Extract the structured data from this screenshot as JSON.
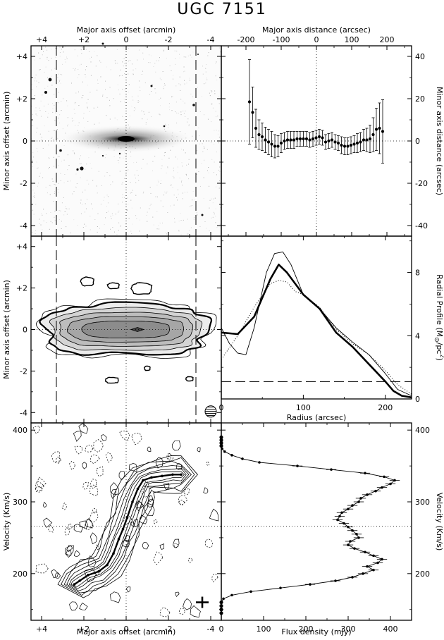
{
  "title": "UGC 7151",
  "chart_data": [
    {
      "panel": "optical-image",
      "type": "image",
      "xlabel_top": "Major axis offset (arcmin)",
      "ylabel": "Minor axis offset (arcmin)",
      "xlim": [
        4.5,
        -4.5
      ],
      "ylim": [
        -4.5,
        4.5
      ],
      "xticks": [
        "+4",
        "+2",
        "0",
        "-2",
        "-4"
      ],
      "yticks": [
        "+4",
        "+2",
        "0",
        "-2",
        "-4"
      ],
      "dashed_lines_x": [
        3.3,
        -3.3
      ]
    },
    {
      "panel": "minor-axis-offsets",
      "type": "scatter",
      "xlabel_top": "Major axis distance (arcsec)",
      "ylabel_right": "Minor axis distance (arcsec)",
      "xlim": [
        -270,
        270
      ],
      "ylim": [
        -45,
        45
      ],
      "xticks": [
        "-200",
        "-100",
        "0",
        "100",
        "200"
      ],
      "yticks": [
        "40",
        "20",
        "0",
        "-20",
        "-40"
      ],
      "x": [
        -190,
        -181,
        -172,
        -163,
        -154,
        -145,
        -136,
        -127,
        -118,
        -109,
        -100,
        -91,
        -82,
        -73,
        -64,
        -55,
        -46,
        -37,
        -28,
        -19,
        -10,
        -1,
        8,
        17,
        26,
        35,
        44,
        53,
        62,
        71,
        80,
        89,
        98,
        107,
        116,
        125,
        134,
        143,
        152,
        161,
        170,
        179,
        188
      ],
      "y": [
        18.5,
        13.5,
        6,
        3,
        2,
        0.5,
        -0.5,
        -1.5,
        -2.5,
        -2.5,
        -1,
        0,
        0.5,
        0.5,
        0.5,
        1,
        1,
        1,
        1,
        0.5,
        1,
        1.5,
        2,
        1.5,
        -0.5,
        0,
        0.5,
        -0.5,
        -1,
        -2,
        -2.5,
        -2.5,
        -2,
        -1.5,
        -1,
        -0.5,
        0.5,
        0.5,
        1,
        3,
        5.5,
        6,
        4.5
      ],
      "err": [
        20,
        12,
        9,
        7,
        6.5,
        6,
        6,
        6,
        5.5,
        5,
        4.5,
        4,
        4,
        4,
        4,
        3.5,
        3.5,
        3.5,
        3.5,
        3.5,
        3.5,
        3.5,
        3.5,
        3.5,
        3.5,
        3.5,
        3.5,
        3.5,
        3.5,
        4,
        4,
        4,
        4,
        4,
        4.5,
        4.5,
        5,
        5.5,
        6.5,
        8,
        10,
        12,
        15
      ]
    },
    {
      "panel": "hi-map",
      "type": "contour",
      "ylabel": "Minor axis offset (arcmin)",
      "xlim": [
        4.5,
        -4.5
      ],
      "ylim": [
        -4.5,
        4.5
      ],
      "yticks": [
        "+4",
        "+2",
        "0",
        "-2",
        "-4"
      ],
      "dashed_lines_x": [
        3.3,
        -3.3
      ]
    },
    {
      "panel": "radial-profile",
      "type": "line",
      "xlabel": "Radius (arcsec)",
      "ylabel_right": "Radial Profile",
      "ylabel_units": "(M",
      "ylabel_sun_sub": "⊙",
      "ylabel_units_tail": "/pc",
      "ylabel_exp": "2",
      "ylabel_close": ")",
      "xlim": [
        0,
        232
      ],
      "ylim": [
        0,
        10.3
      ],
      "xticks": [
        "0",
        "100",
        "200"
      ],
      "yticks": [
        "0",
        "4",
        "8"
      ],
      "hline_dashed": 1.1,
      "series": [
        {
          "style": "thick",
          "x": [
            0,
            20,
            40,
            60,
            70,
            80,
            100,
            120,
            140,
            160,
            180,
            200,
            210,
            220,
            232
          ],
          "y": [
            4.2,
            4.1,
            5.2,
            7.6,
            8.5,
            8.0,
            6.6,
            5.7,
            4.2,
            3.3,
            2.2,
            1.1,
            0.5,
            0.2,
            0.1
          ]
        },
        {
          "style": "thin",
          "x": [
            0,
            10,
            20,
            30,
            40,
            55,
            65,
            75,
            85,
            100,
            120,
            140,
            160,
            180,
            200,
            215,
            232
          ],
          "y": [
            4.5,
            3.5,
            2.9,
            2.8,
            4.5,
            8.0,
            9.2,
            9.3,
            8.5,
            6.6,
            5.7,
            4.5,
            3.6,
            2.8,
            1.6,
            0.6,
            0.2
          ]
        },
        {
          "style": "dotted",
          "x": [
            0,
            20,
            40,
            60,
            70,
            80,
            90,
            100,
            120,
            140,
            160,
            180,
            200,
            215,
            232
          ],
          "y": [
            2.5,
            4.0,
            5.8,
            7.3,
            7.5,
            7.4,
            6.8,
            6.6,
            5.8,
            4.4,
            3.5,
            2.8,
            1.8,
            0.9,
            0.3
          ]
        }
      ]
    },
    {
      "panel": "position-velocity",
      "type": "contour",
      "xlabel": "Major axis offset (arcmin)",
      "ylabel": "Velocity (Km/s)",
      "xlim": [
        4.5,
        -4.5
      ],
      "ylim": [
        135,
        410
      ],
      "xticks": [
        "+4",
        "+2",
        "0",
        "-2",
        "-4"
      ],
      "yticks": [
        "400",
        "300",
        "200"
      ],
      "hline_dotted": 266
    },
    {
      "panel": "global-profile",
      "type": "line",
      "xlabel": "Flux density (mJy)",
      "ylabel_right": "Velocity (Km/s)",
      "xlim": [
        0,
        450
      ],
      "ylim": [
        135,
        410
      ],
      "xticks": [
        "0",
        "100",
        "200",
        "300",
        "400"
      ],
      "yticks": [
        "400",
        "300",
        "200"
      ],
      "hline_dotted": 266,
      "v": [
        390,
        386,
        382,
        378,
        374,
        370,
        365,
        360,
        355,
        350,
        345,
        340,
        335,
        330,
        325,
        320,
        315,
        310,
        305,
        300,
        295,
        290,
        285,
        280,
        275,
        270,
        265,
        260,
        255,
        250,
        245,
        240,
        235,
        230,
        225,
        220,
        215,
        210,
        205,
        200,
        195,
        190,
        185,
        180,
        175,
        170,
        165,
        160,
        155,
        150,
        145
      ],
      "flux": [
        0,
        0,
        0,
        0,
        2,
        8,
        25,
        50,
        90,
        180,
        260,
        340,
        385,
        410,
        400,
        380,
        365,
        345,
        330,
        325,
        310,
        300,
        285,
        280,
        275,
        290,
        300,
        310,
        320,
        325,
        305,
        300,
        315,
        340,
        360,
        380,
        370,
        345,
        360,
        335,
        310,
        270,
        210,
        140,
        70,
        25,
        5,
        0,
        0,
        0,
        0
      ]
    }
  ]
}
